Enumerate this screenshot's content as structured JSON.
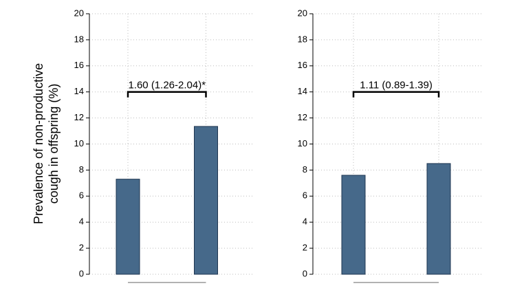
{
  "chart_data": [
    {
      "type": "bar",
      "ylabel": [
        "Prevalence of non-productive",
        "cough in offspring (%)"
      ],
      "categories": [
        null,
        null
      ],
      "values": [
        7.3,
        11.35
      ],
      "color": "#46698a",
      "ylim": [
        0,
        20
      ],
      "yticks": [
        0,
        2,
        4,
        6,
        8,
        10,
        12,
        14,
        16,
        18,
        20
      ],
      "grid": true,
      "annotation": {
        "text": "1.60 (1.26-2.04)*",
        "y": 14
      }
    },
    {
      "type": "bar",
      "categories": [
        null,
        null
      ],
      "values": [
        7.6,
        8.5
      ],
      "color": "#46698a",
      "ylim": [
        0,
        20
      ],
      "yticks": [
        0,
        2,
        4,
        6,
        8,
        10,
        12,
        14,
        16,
        18,
        20
      ],
      "grid": true,
      "annotation": {
        "text": "1.11 (0.89-1.39)",
        "y": 14
      }
    }
  ]
}
